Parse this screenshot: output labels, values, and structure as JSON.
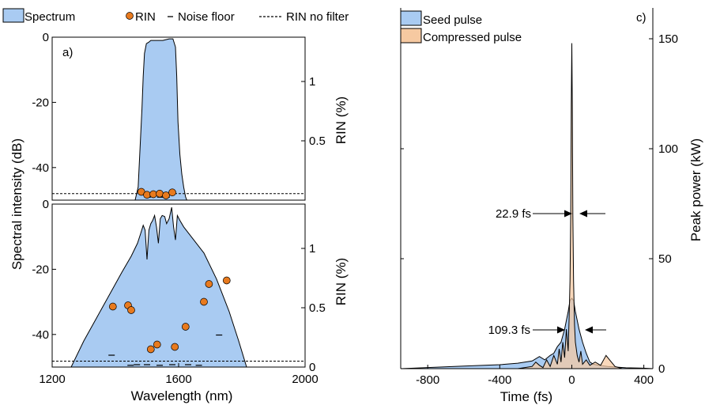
{
  "colors": {
    "spectrum": "#a9cbf2",
    "seed": "#a9cbf2",
    "compressed": "#f6c9a1",
    "rin": "#e87a1e",
    "edge": "#000000"
  },
  "legend_left": {
    "spectrum": "Spectrum",
    "rin": "RIN",
    "noise": "Noise floor",
    "nofilter": "RIN no filter"
  },
  "legend_right": {
    "seed": "Seed pulse",
    "compressed": "Compressed pulse"
  },
  "panel_labels": {
    "a": "a)",
    "c": "c)"
  },
  "axes_text": {
    "ylabel_left": "Spectral intensity (dB)",
    "ylabel_rin_top": "RIN (%)",
    "ylabel_rin_bottom": "RIN (%)",
    "xlabel_left": "Wavelength (nm)",
    "ylabel_right": "Peak power (kW)",
    "xlabel_right": "Time (fs)"
  },
  "annotations": {
    "fwhm_compressed": "22.9 fs",
    "fwhm_seed": "109.3 fs"
  },
  "chart_data": [
    {
      "type": "area",
      "panel": "top-left",
      "xlim": [
        1200,
        2000
      ],
      "ylim": [
        -50,
        0
      ],
      "yticks": [
        0,
        -20,
        -40
      ],
      "y2lim": [
        0,
        1.2
      ],
      "y2ticks": [
        0.5,
        1
      ],
      "ylabel": "Spectral intensity (dB)",
      "y2label": "RIN (%)",
      "series": [
        {
          "name": "Spectrum",
          "x": [
            1460,
            1472,
            1478,
            1484,
            1488,
            1492,
            1498,
            1506,
            1512,
            1530,
            1550,
            1570,
            1582,
            1590,
            1594,
            1598,
            1604,
            1610,
            1616,
            1622,
            1630
          ],
          "y": [
            -51,
            -46,
            -34,
            -22,
            -12,
            -5,
            -2,
            -1.5,
            -1,
            -1,
            -1,
            -0.5,
            -0.5,
            -3,
            -12,
            -26,
            -36,
            -42,
            -46,
            -49,
            -51
          ]
        },
        {
          "name": "RIN",
          "x": [
            1482,
            1500,
            1520,
            1540,
            1560,
            1580
          ],
          "y": [
            0.07,
            0.045,
            0.05,
            0.055,
            0.04,
            0.065
          ],
          "axis": "right"
        },
        {
          "name": "Noise floor",
          "x": [
            1502,
            1542,
            1562
          ],
          "y": [
            0.025,
            0.025,
            0.025
          ],
          "axis": "right"
        },
        {
          "name": "RIN no filter",
          "y": 0.055,
          "axis": "right"
        }
      ]
    },
    {
      "type": "area",
      "panel": "bottom-left",
      "xlim": [
        1200,
        2000
      ],
      "ylim": [
        -50,
        0
      ],
      "yticks": [
        0,
        -20,
        -40
      ],
      "y2lim": [
        0,
        1.2
      ],
      "y2ticks": [
        0,
        0.5,
        1
      ],
      "xticks": [
        1200,
        1600,
        2000
      ],
      "xlabel": "Wavelength (nm)",
      "y2label": "RIN (%)",
      "series": [
        {
          "name": "Spectrum",
          "x": [
            1260,
            1300,
            1340,
            1380,
            1420,
            1450,
            1470,
            1480,
            1488,
            1494,
            1500,
            1506,
            1512,
            1518,
            1524,
            1530,
            1536,
            1542,
            1548,
            1556,
            1562,
            1570,
            1578,
            1584,
            1590,
            1596,
            1604,
            1616,
            1640,
            1680,
            1720,
            1760,
            1790,
            1815
          ],
          "y": [
            -50,
            -42,
            -35,
            -28,
            -21,
            -16,
            -12,
            -9,
            -6.5,
            -8,
            -17,
            -8,
            -6,
            -5,
            -3.5,
            -7,
            -12,
            -4.5,
            -3.5,
            -3.8,
            -6,
            -4.5,
            -1,
            -7,
            -11,
            -3.5,
            -5,
            -7,
            -10,
            -15,
            -23,
            -33,
            -42,
            -50
          ]
        },
        {
          "name": "RIN",
          "x": [
            1392,
            1440,
            1450,
            1512,
            1532,
            1588,
            1622,
            1680,
            1696,
            1752
          ],
          "y": [
            0.51,
            0.52,
            0.48,
            0.15,
            0.19,
            0.17,
            0.34,
            0.55,
            0.7,
            0.73
          ],
          "axis": "right"
        },
        {
          "name": "Noise floor",
          "x": [
            1388,
            1448,
            1468,
            1500,
            1540,
            1580,
            1630,
            1664,
            1728
          ],
          "y": [
            0.1,
            0.015,
            0.02,
            0.02,
            0.015,
            0.02,
            0.02,
            0.015,
            0.27
          ],
          "axis": "right"
        },
        {
          "name": "RIN no filter",
          "y": 0.05,
          "axis": "right"
        }
      ]
    },
    {
      "type": "area",
      "panel": "right",
      "xlim": [
        -950,
        450
      ],
      "ylim": [
        0,
        150
      ],
      "xticks": [
        -800,
        -400,
        0,
        400
      ],
      "yticks": [
        0,
        50,
        100,
        150
      ],
      "xlabel": "Time (fs)",
      "ylabel": "Peak power (kW)",
      "series": [
        {
          "name": "Seed pulse",
          "x": [
            -950,
            -800,
            -600,
            -400,
            -300,
            -220,
            -180,
            -150,
            -120,
            -100,
            -80,
            -60,
            -40,
            -20,
            -10,
            0,
            10,
            20,
            40,
            60,
            80,
            100,
            120,
            150,
            200,
            260,
            300,
            400,
            450
          ],
          "y": [
            0,
            0.5,
            1.2,
            1.8,
            2.5,
            3.5,
            5.5,
            4,
            6,
            7,
            10,
            12,
            18,
            26,
            31,
            32,
            31,
            26,
            18,
            12,
            7,
            3,
            2,
            1.5,
            1,
            0.6,
            0.4,
            0.2,
            0
          ]
        },
        {
          "name": "Compressed pulse",
          "x": [
            -950,
            -300,
            -260,
            -220,
            -200,
            -180,
            -160,
            -140,
            -120,
            -100,
            -80,
            -70,
            -60,
            -50,
            -40,
            -30,
            -20,
            -15,
            -10,
            -6,
            -3,
            0,
            3,
            6,
            10,
            15,
            20,
            30,
            40,
            50,
            60,
            80,
            100,
            130,
            160,
            190,
            210,
            240,
            280,
            450
          ],
          "y": [
            0,
            0,
            0.5,
            1,
            3,
            1.5,
            0.5,
            4,
            1,
            6,
            2,
            9,
            3,
            12,
            5,
            18,
            8,
            22,
            40,
            70,
            120,
            148,
            120,
            70,
            40,
            20,
            12,
            6,
            3,
            8,
            2,
            4,
            1.5,
            3,
            1.5,
            6,
            4,
            1,
            0,
            0
          ]
        }
      ]
    }
  ]
}
